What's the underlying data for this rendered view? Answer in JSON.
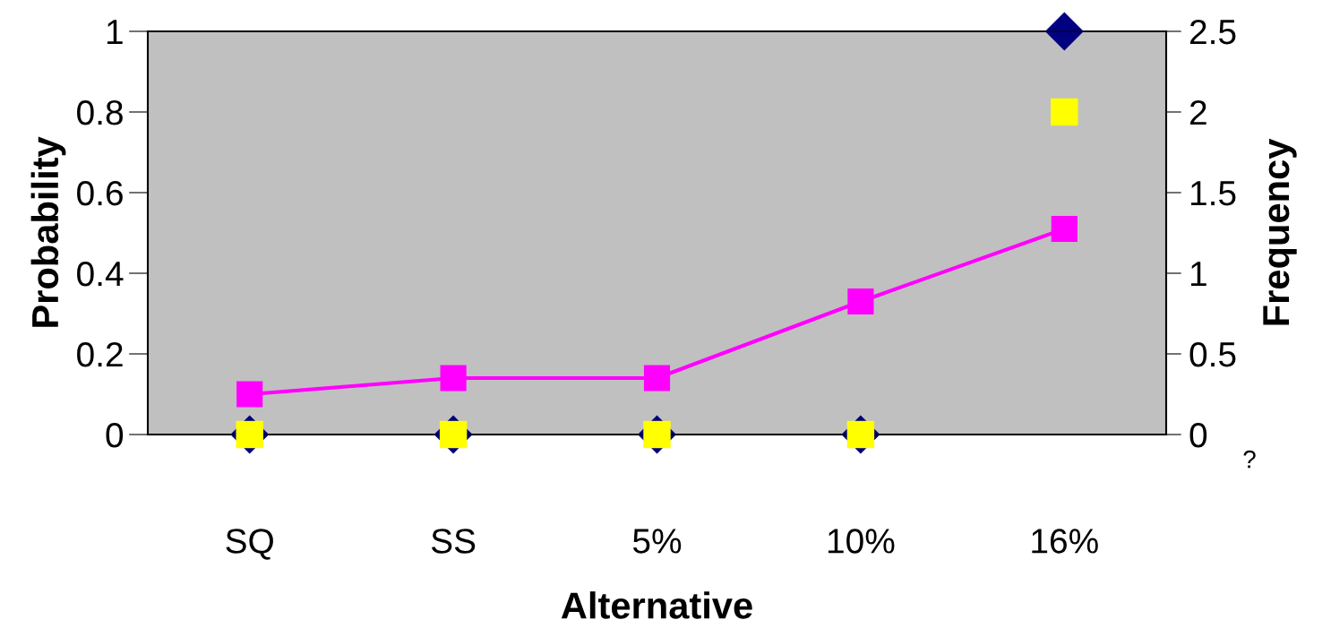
{
  "chart_data": {
    "type": "line",
    "xlabel": "Alternative",
    "ylabel": "Probability",
    "y2label": "Frequency",
    "categories": [
      "SQ",
      "SS",
      "5%",
      "10%",
      "16%"
    ],
    "ylim": [
      0,
      1
    ],
    "yticks": [
      0,
      0.2,
      0.4,
      0.6,
      0.8,
      1
    ],
    "y2lim": [
      0,
      2.5
    ],
    "y2ticks": [
      0,
      0.5,
      1,
      1.5,
      2,
      2.5
    ],
    "grid": false,
    "legend": false,
    "series": [
      {
        "type": "scatter",
        "color": "#000080",
        "marker": "diamond",
        "values": [
          0,
          0,
          0,
          0,
          1
        ]
      },
      {
        "type": "scatter",
        "color": "#ffff00",
        "marker": "square",
        "axis": "y2",
        "values": [
          0,
          0,
          0,
          0,
          2
        ]
      },
      {
        "color": "#ff00ff",
        "marker": "square",
        "values": [
          0.1,
          0.14,
          0.14,
          0.33,
          0.51
        ]
      }
    ],
    "annotations": [
      "?"
    ]
  }
}
